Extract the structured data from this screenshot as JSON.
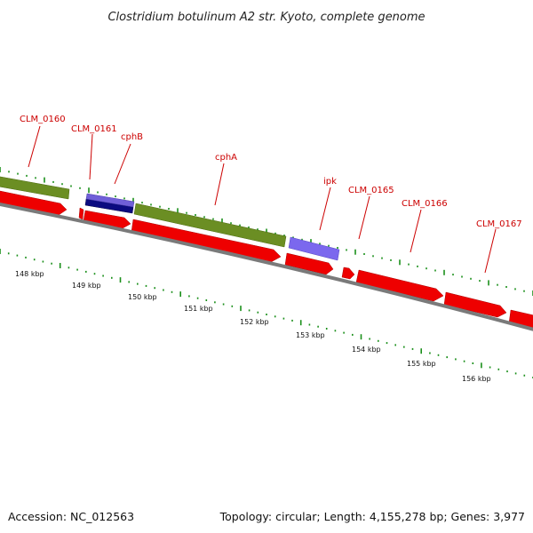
{
  "title": "Clostridium botulinum A2 str. Kyoto, complete genome",
  "footer": {
    "accession": "Accession: NC_012563",
    "summary": "Topology: circular; Length: 4,155,278 bp; Genes: 3,977"
  },
  "colors": {
    "label": "#cc0000",
    "gene_red": "#ee0000",
    "cds_green": "#6b8e23",
    "dark_blue": "#0b0b80",
    "light_purple": "#7b68ee",
    "backbone": "#808080",
    "tick_green": "#1a8f1a"
  },
  "gene_labels": [
    {
      "text": "CLM_0160"
    },
    {
      "text": "CLM_0161"
    },
    {
      "text": "cphB"
    },
    {
      "text": "cphA"
    },
    {
      "text": "ipk"
    },
    {
      "text": "CLM_0165"
    },
    {
      "text": "CLM_0166"
    },
    {
      "text": "CLM_0167"
    }
  ],
  "kbp_labels": [
    "148 kbp",
    "149 kbp",
    "150 kbp",
    "151 kbp",
    "152 kbp",
    "153 kbp",
    "154 kbp",
    "155 kbp",
    "156 kbp"
  ]
}
